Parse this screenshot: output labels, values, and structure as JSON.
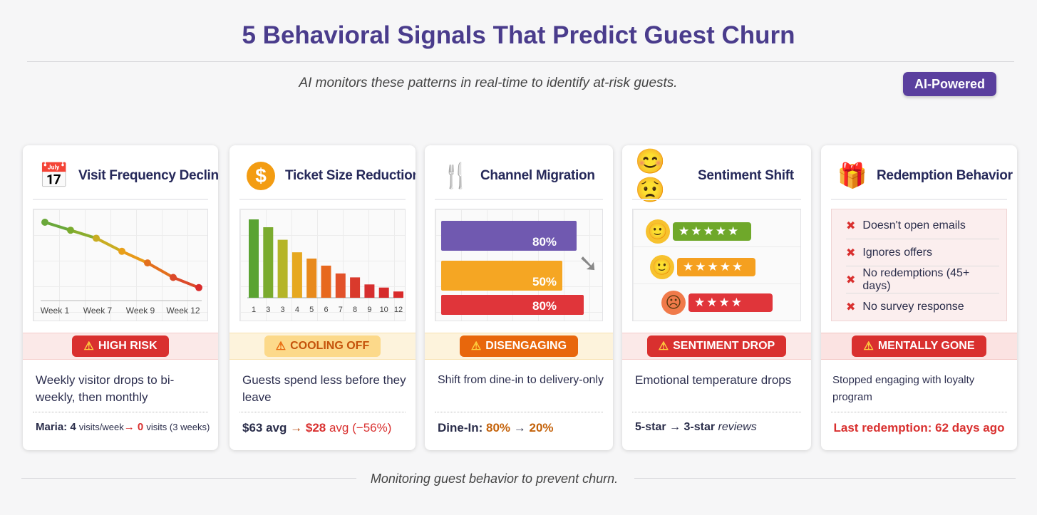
{
  "title": "5 Behavioral Signals That Predict Guest Churn",
  "subtitle": "AI monitors these patterns in real-time to identify at-risk guests.",
  "badge": "AI-Powered",
  "footer": "Monitoring guest behavior to prevent churn.",
  "colors": {
    "title": "#4a3c8c",
    "red": "#d9302f",
    "orange": "#e8670c",
    "amber": "#f5a623",
    "green": "#5a9e32",
    "purple": "#7059b0"
  },
  "cards": [
    {
      "title": "Visit Frequency Decline",
      "icon": "calendar-down-icon",
      "status": "HIGH RISK",
      "desc": "Weekly visitor drops to bi-weekly, then monthly",
      "foot": {
        "name": "Maria:",
        "from": "4",
        "from_unit": "visits/week",
        "arrow": "→",
        "to": "0",
        "to_unit": "visits (3 weeks)"
      },
      "chart": {
        "type": "line",
        "x_labels": [
          "Week 1",
          "Week 7",
          "Week 9",
          "Week 12"
        ],
        "values": [
          100,
          89,
          78,
          60,
          44,
          24,
          10
        ]
      }
    },
    {
      "title": "Ticket Size Reduction",
      "icon": "dollar-down-icon",
      "status": "COOLING OFF",
      "desc": "Guests spend less before they leave",
      "foot": {
        "from": "$63 avg",
        "arrow": "→",
        "to": "$28",
        "to_unit": "avg (−56%)"
      },
      "chart": {
        "type": "bar",
        "x_labels": [
          "1",
          "3",
          "3",
          "4",
          "5",
          "6",
          "7",
          "8",
          "9",
          "10",
          "12"
        ],
        "values": [
          100,
          90,
          74,
          58,
          50,
          41,
          31,
          26,
          17,
          13,
          8
        ]
      }
    },
    {
      "title": "Channel Migration",
      "icon": "fork-takeout-icon",
      "status": "DISENGAGING",
      "desc": "Shift from dine-in to delivery-only",
      "foot": {
        "name": "Dine-In:",
        "from": "80%",
        "arrow": "→",
        "to": "20%"
      },
      "chart": {
        "type": "hbar",
        "labels": [
          "80%",
          "50%",
          "80%"
        ],
        "colors": [
          "#7059b0",
          "#f5a623",
          "#e0353a"
        ]
      }
    },
    {
      "title": "Sentiment Shift",
      "icon": "smiley-frown-icon",
      "status": "SENTIMENT DROP",
      "desc": "Emotional temperature drops",
      "foot": {
        "from": "5-star",
        "arrow": "→",
        "to": "3-star",
        "to_unit": "reviews"
      },
      "ratings": [
        {
          "stars": 5,
          "face": "🙂",
          "color": "#6fa82a"
        },
        {
          "stars": 5,
          "face": "🙂",
          "color": "#f5a020"
        },
        {
          "stars": 4,
          "face": "☹",
          "color": "#e0353a"
        }
      ]
    },
    {
      "title": "Redemption Behavior",
      "icon": "gift-x-icon",
      "status": "MENTALLY GONE",
      "desc": "Stopped engaging with loyalty program",
      "foot": {
        "text": "Last redemption: 62 days ago"
      },
      "checklist": [
        "Doesn't open emails",
        "Ignores offers",
        "No redemptions (45+ days)",
        "No survey response"
      ]
    }
  ]
}
